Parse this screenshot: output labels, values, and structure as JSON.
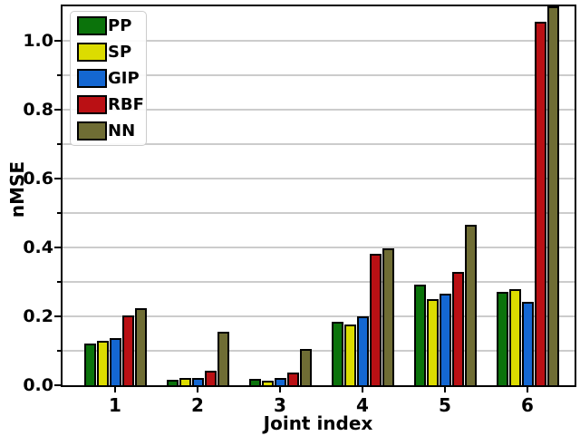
{
  "chart_data": {
    "type": "bar",
    "title": "",
    "xlabel": "Joint index",
    "ylabel": "nMSE",
    "categories": [
      "1",
      "2",
      "3",
      "4",
      "5",
      "6"
    ],
    "series": [
      {
        "name": "PP",
        "color": "#0b730b",
        "values": [
          0.121,
          0.017,
          0.019,
          0.183,
          0.292,
          0.272
        ]
      },
      {
        "name": "SP",
        "color": "#dcdc00",
        "values": [
          0.128,
          0.021,
          0.012,
          0.177,
          0.25,
          0.278
        ]
      },
      {
        "name": "GIP",
        "color": "#1467d2",
        "values": [
          0.137,
          0.02,
          0.022,
          0.2,
          0.265,
          0.241
        ]
      },
      {
        "name": "RBF",
        "color": "#ba1014",
        "values": [
          0.202,
          0.041,
          0.036,
          0.381,
          0.329,
          1.056
        ]
      },
      {
        "name": "NN",
        "color": "#6f6d34",
        "values": [
          0.223,
          0.154,
          0.105,
          0.398,
          0.465,
          1.1
        ]
      }
    ],
    "clipped_note": "NN bar at joint 6 is clipped at the top axis limit",
    "ylim": [
      0,
      1.1
    ],
    "ytick_labels": [
      "0.0",
      "0.2",
      "0.4",
      "0.6",
      "0.8",
      "1.0"
    ],
    "ytick_values_major": [
      0.0,
      0.2,
      0.4,
      0.6,
      0.8,
      1.0
    ],
    "ytick_values_minor": [
      0.1,
      0.3,
      0.5,
      0.7,
      0.9
    ],
    "grid_interval": 0.1,
    "grid_color": "#cccccc",
    "bar_edge_color": "#000000",
    "legend_position": "upper left",
    "legend_entries": [
      "PP",
      "SP",
      "GIP",
      "RBF",
      "NN"
    ]
  }
}
